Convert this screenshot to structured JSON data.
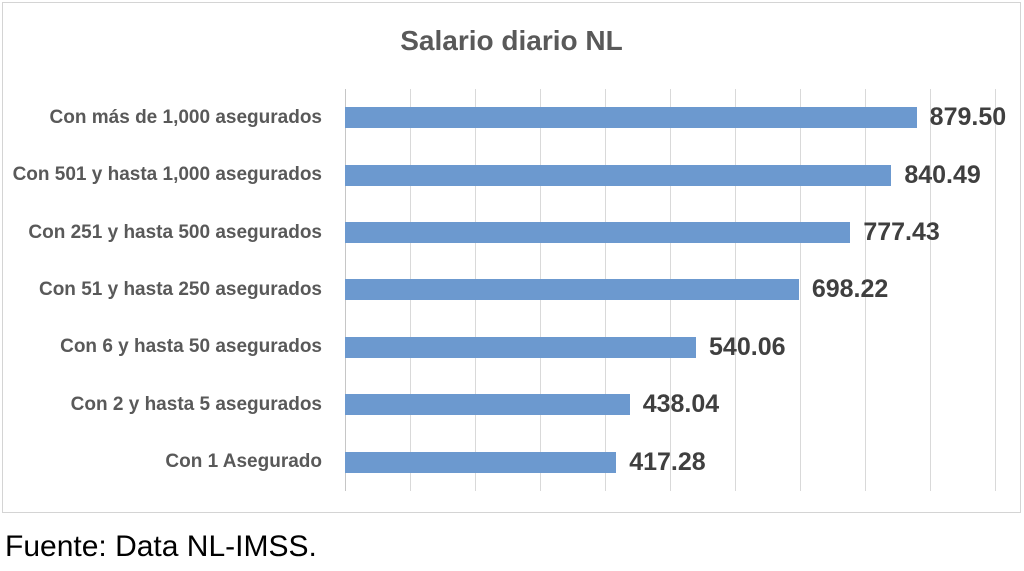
{
  "title": "Salario diario NL",
  "source_note": "Fuente: Data NL-IMSS.",
  "colors": {
    "bar": "#6c99cf",
    "title_text": "#595959",
    "category_text": "#595959",
    "value_text": "#3f3f3f",
    "gridline": "#d9d9d9",
    "axis_line": "#c6c6c6",
    "chart_border": "#d4d4d4"
  },
  "chart_data": {
    "type": "bar",
    "orientation": "horizontal",
    "title": "Salario diario NL",
    "categories": [
      "Con más de 1,000 asegurados",
      "Con 501 y hasta 1,000 asegurados",
      "Con 251 y hasta 500 asegurados",
      "Con 51 y hasta 250 asegurados",
      "Con 6 y hasta 50 asegurados",
      "Con 2 y hasta 5 asegurados",
      "Con 1 Asegurado"
    ],
    "values": [
      879.5,
      840.49,
      777.43,
      698.22,
      540.06,
      438.04,
      417.28
    ],
    "value_labels": [
      "879.50",
      "840.49",
      "777.43",
      "698.22",
      "540.06",
      "438.04",
      "417.28"
    ],
    "xlabel": "",
    "ylabel": "",
    "xlim": [
      0,
      1000
    ],
    "grid_interval": 100,
    "grid": true,
    "legend": false
  }
}
